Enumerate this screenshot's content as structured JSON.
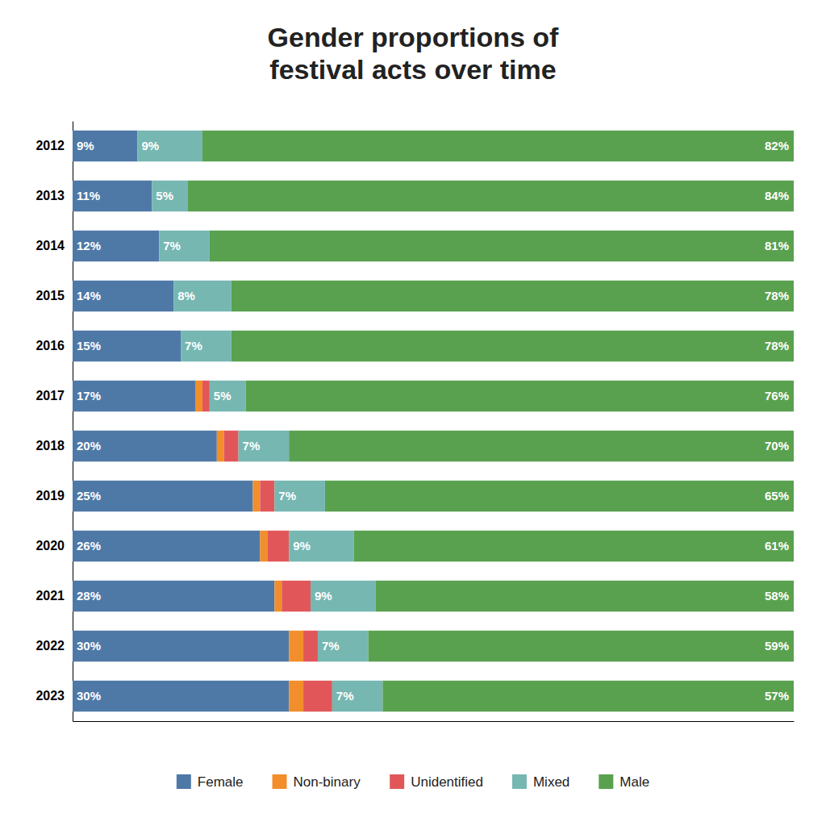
{
  "chart_data": {
    "type": "bar",
    "title": "Gender proportions of\nfestival acts over time",
    "orientation": "horizontal",
    "stacked": true,
    "legend": "bottom",
    "tick_labels": "y",
    "categories": [
      "2023",
      "2022",
      "2021",
      "2020",
      "2019",
      "2018",
      "2017",
      "2016",
      "2015",
      "2014",
      "2013",
      "2012"
    ],
    "xlim": [
      0,
      100
    ],
    "series": [
      {
        "name": "Female",
        "values": [
          30,
          30,
          28,
          26,
          25,
          20,
          17,
          15,
          14,
          12,
          11,
          9
        ],
        "data_labels": true,
        "value_labels": [
          "30%",
          "30%",
          "28%",
          "26%",
          "25%",
          "20%",
          "17%",
          "15%",
          "14%",
          "12%",
          "11%",
          "9%"
        ]
      },
      {
        "name": "Non-binary",
        "values": [
          2,
          2,
          1,
          1,
          1,
          1,
          1,
          0,
          0,
          0,
          0,
          0
        ],
        "data_labels": false
      },
      {
        "name": "Unidentified",
        "values": [
          4,
          2,
          4,
          3,
          2,
          2,
          1,
          0,
          0,
          0,
          0,
          0
        ],
        "data_labels": false
      },
      {
        "name": "Mixed",
        "values": [
          7,
          7,
          9,
          9,
          7,
          7,
          5,
          7,
          8,
          7,
          5,
          9
        ],
        "data_labels": true,
        "value_labels": [
          "7%",
          "7%",
          "9%",
          "9%",
          "7%",
          "7%",
          "5%",
          "7%",
          "8%",
          "7%",
          "5%",
          "9%"
        ]
      },
      {
        "name": "Male",
        "values": [
          57,
          59,
          58,
          61,
          65,
          70,
          76,
          78,
          78,
          81,
          84,
          82
        ],
        "data_labels": true,
        "value_labels": [
          "57%",
          "59%",
          "58%",
          "61%",
          "65%",
          "70%",
          "76%",
          "78%",
          "78%",
          "81%",
          "84%",
          "82%"
        ]
      }
    ]
  }
}
